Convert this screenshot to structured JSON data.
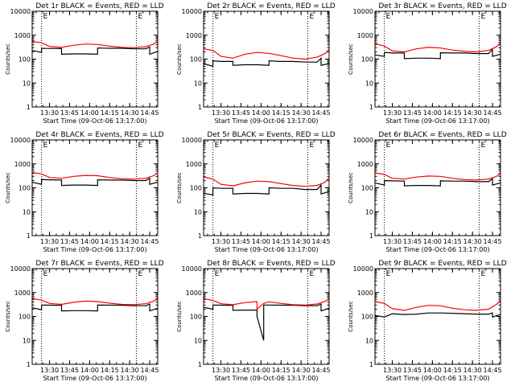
{
  "colors": {
    "events": "#000000",
    "lld": "#ff0000",
    "axes": "#000000",
    "background": "#ffffff"
  },
  "chart_data": [
    {
      "type": "line",
      "title": "Det 1r BLACK = Events, RED = LLD",
      "xlabel": "Start Time (09-Oct-06 13:17:00)",
      "ylabel": "Counts/sec",
      "yscale": "log",
      "ylim": [
        1,
        10000
      ],
      "yticks": [
        "1",
        "10",
        "100",
        "1000",
        "10000"
      ],
      "xlim": [
        "13:17",
        "14:51"
      ],
      "xticks": [
        "13:30",
        "13:45",
        "14:00",
        "14:15",
        "14:30",
        "14:45"
      ],
      "markers": [
        "13:24",
        "14:35"
      ],
      "marker_label": "E",
      "series": [
        {
          "name": "Events",
          "color": "#000000",
          "x": [
            "13:17",
            "13:24",
            "13:24",
            "13:30",
            "13:39",
            "13:39",
            "13:48",
            "13:57",
            "14:06",
            "14:06",
            "14:15",
            "14:24",
            "14:24",
            "14:33",
            "14:42",
            "14:45",
            "14:45",
            "14:51"
          ],
          "y": [
            230,
            190,
            280,
            280,
            275,
            160,
            165,
            165,
            160,
            290,
            285,
            285,
            285,
            270,
            270,
            320,
            160,
            210
          ]
        },
        {
          "name": "LLD",
          "color": "#ff0000",
          "x": [
            "13:17",
            "13:24",
            "13:30",
            "13:39",
            "13:48",
            "13:57",
            "14:06",
            "14:15",
            "14:24",
            "14:33",
            "14:42",
            "14:48",
            "14:51"
          ],
          "y": [
            550,
            480,
            340,
            310,
            380,
            430,
            410,
            350,
            310,
            300,
            330,
            430,
            560
          ]
        }
      ]
    },
    {
      "type": "line",
      "title": "Det 2r BLACK = Events, RED = LLD",
      "xlabel": "Start Time (09-Oct-06 13:17:00)",
      "ylabel": "Counts/sec",
      "yscale": "log",
      "ylim": [
        1,
        10000
      ],
      "yticks": [
        "1",
        "10",
        "100",
        "1000",
        "10000"
      ],
      "xlim": [
        "13:17",
        "14:51"
      ],
      "xticks": [
        "13:30",
        "13:45",
        "14:00",
        "14:15",
        "14:30",
        "14:45"
      ],
      "markers": [
        "13:24",
        "14:35"
      ],
      "marker_label": "E",
      "series": [
        {
          "name": "Events",
          "color": "#000000",
          "x": [
            "13:17",
            "13:24",
            "13:24",
            "13:30",
            "13:39",
            "13:39",
            "13:48",
            "13:57",
            "14:06",
            "14:06",
            "14:15",
            "14:24",
            "14:24",
            "14:33",
            "14:42",
            "14:45",
            "14:45",
            "14:51"
          ],
          "y": [
            65,
            50,
            85,
            80,
            80,
            55,
            58,
            58,
            55,
            85,
            80,
            80,
            80,
            75,
            75,
            110,
            55,
            65
          ]
        },
        {
          "name": "LLD",
          "color": "#ff0000",
          "x": [
            "13:17",
            "13:24",
            "13:30",
            "13:39",
            "13:48",
            "13:57",
            "14:06",
            "14:15",
            "14:24",
            "14:33",
            "14:42",
            "14:48",
            "14:51"
          ],
          "y": [
            270,
            230,
            130,
            110,
            160,
            190,
            175,
            140,
            110,
            100,
            120,
            170,
            260
          ]
        }
      ]
    },
    {
      "type": "line",
      "title": "Det 3r BLACK = Events, RED = LLD",
      "xlabel": "Start Time (09-Oct-06 13:17:00)",
      "ylabel": "Counts/sec",
      "yscale": "log",
      "ylim": [
        1,
        10000
      ],
      "yticks": [
        "1",
        "10",
        "100",
        "1000",
        "10000"
      ],
      "xlim": [
        "13:17",
        "14:51"
      ],
      "xticks": [
        "13:30",
        "13:45",
        "14:00",
        "14:15",
        "14:30",
        "14:45"
      ],
      "markers": [
        "13:24",
        "14:35"
      ],
      "marker_label": "E",
      "series": [
        {
          "name": "Events",
          "color": "#000000",
          "x": [
            "13:17",
            "13:24",
            "13:24",
            "13:30",
            "13:39",
            "13:39",
            "13:48",
            "13:57",
            "14:06",
            "14:06",
            "14:15",
            "14:24",
            "14:24",
            "14:33",
            "14:42",
            "14:45",
            "14:45",
            "14:51"
          ],
          "y": [
            150,
            130,
            190,
            180,
            180,
            105,
            110,
            110,
            105,
            185,
            180,
            180,
            180,
            170,
            170,
            260,
            130,
            160
          ]
        },
        {
          "name": "LLD",
          "color": "#ff0000",
          "x": [
            "13:17",
            "13:24",
            "13:30",
            "13:39",
            "13:48",
            "13:57",
            "14:06",
            "14:15",
            "14:24",
            "14:33",
            "14:42",
            "14:48",
            "14:51"
          ],
          "y": [
            450,
            350,
            220,
            200,
            270,
            310,
            290,
            240,
            210,
            200,
            230,
            330,
            480
          ]
        }
      ]
    },
    {
      "type": "line",
      "title": "Det 4r BLACK = Events, RED = LLD",
      "xlabel": "Start Time (09-Oct-06 13:17:00)",
      "ylabel": "Counts/sec",
      "yscale": "log",
      "ylim": [
        1,
        10000
      ],
      "yticks": [
        "1",
        "10",
        "100",
        "1000",
        "10000"
      ],
      "xlim": [
        "13:17",
        "14:51"
      ],
      "xticks": [
        "13:30",
        "13:45",
        "14:00",
        "14:15",
        "14:30",
        "14:45"
      ],
      "markers": [
        "13:24",
        "14:35"
      ],
      "marker_label": "E",
      "series": [
        {
          "name": "Events",
          "color": "#000000",
          "x": [
            "13:17",
            "13:24",
            "13:24",
            "13:30",
            "13:39",
            "13:39",
            "13:48",
            "13:57",
            "14:06",
            "14:06",
            "14:15",
            "14:24",
            "14:24",
            "14:33",
            "14:42",
            "14:45",
            "14:45",
            "14:51"
          ],
          "y": [
            170,
            140,
            220,
            215,
            210,
            125,
            130,
            130,
            125,
            215,
            210,
            210,
            210,
            200,
            200,
            250,
            140,
            170
          ]
        },
        {
          "name": "LLD",
          "color": "#ff0000",
          "x": [
            "13:17",
            "13:24",
            "13:30",
            "13:39",
            "13:48",
            "13:57",
            "14:06",
            "14:15",
            "14:24",
            "14:33",
            "14:42",
            "14:48",
            "14:51"
          ],
          "y": [
            440,
            380,
            270,
            250,
            300,
            330,
            320,
            270,
            240,
            230,
            250,
            320,
            430
          ]
        }
      ]
    },
    {
      "type": "line",
      "title": "Det 5r BLACK = Events, RED = LLD",
      "xlabel": "Start Time (09-Oct-06 13:17:00)",
      "ylabel": "Counts/sec",
      "yscale": "log",
      "ylim": [
        1,
        10000
      ],
      "yticks": [
        "1",
        "10",
        "100",
        "1000",
        "10000"
      ],
      "xlim": [
        "13:17",
        "14:51"
      ],
      "xticks": [
        "13:30",
        "13:45",
        "14:00",
        "14:15",
        "14:30",
        "14:45"
      ],
      "markers": [
        "13:24",
        "14:35"
      ],
      "marker_label": "E",
      "series": [
        {
          "name": "Events",
          "color": "#000000",
          "x": [
            "13:17",
            "13:24",
            "13:24",
            "13:30",
            "13:39",
            "13:39",
            "13:48",
            "13:57",
            "14:06",
            "14:06",
            "14:15",
            "14:24",
            "14:24",
            "14:33",
            "14:42",
            "14:45",
            "14:45",
            "14:51"
          ],
          "y": [
            60,
            50,
            100,
            95,
            95,
            55,
            58,
            58,
            55,
            100,
            95,
            95,
            95,
            85,
            85,
            130,
            55,
            70
          ]
        },
        {
          "name": "LLD",
          "color": "#ff0000",
          "x": [
            "13:17",
            "13:24",
            "13:30",
            "13:39",
            "13:48",
            "13:57",
            "14:06",
            "14:15",
            "14:24",
            "14:33",
            "14:42",
            "14:48",
            "14:51"
          ],
          "y": [
            280,
            230,
            140,
            120,
            160,
            190,
            180,
            150,
            125,
            115,
            125,
            170,
            270
          ]
        }
      ]
    },
    {
      "type": "line",
      "title": "Det 6r BLACK = Events, RED = LLD",
      "xlabel": "Start Time (09-Oct-06 13:17:00)",
      "ylabel": "Counts/sec",
      "yscale": "log",
      "ylim": [
        1,
        10000
      ],
      "yticks": [
        "1",
        "10",
        "100",
        "1000",
        "10000"
      ],
      "xlim": [
        "13:17",
        "14:51"
      ],
      "xticks": [
        "13:30",
        "13:45",
        "14:00",
        "14:15",
        "14:30",
        "14:45"
      ],
      "markers": [
        "13:24",
        "14:35"
      ],
      "marker_label": "E",
      "series": [
        {
          "name": "Events",
          "color": "#000000",
          "x": [
            "13:17",
            "13:24",
            "13:24",
            "13:30",
            "13:39",
            "13:39",
            "13:48",
            "13:57",
            "14:06",
            "14:06",
            "14:15",
            "14:24",
            "14:24",
            "14:33",
            "14:42",
            "14:45",
            "14:45",
            "14:51"
          ],
          "y": [
            160,
            130,
            200,
            195,
            190,
            120,
            125,
            125,
            120,
            195,
            190,
            190,
            190,
            180,
            180,
            240,
            130,
            160
          ]
        },
        {
          "name": "LLD",
          "color": "#ff0000",
          "x": [
            "13:17",
            "13:24",
            "13:30",
            "13:39",
            "13:48",
            "13:57",
            "14:06",
            "14:15",
            "14:24",
            "14:33",
            "14:42",
            "14:48",
            "14:51"
          ],
          "y": [
            420,
            360,
            250,
            230,
            280,
            310,
            300,
            250,
            220,
            210,
            230,
            300,
            400
          ]
        }
      ]
    },
    {
      "type": "line",
      "title": "Det 7r BLACK = Events, RED = LLD",
      "xlabel": "Start Time (09-Oct-06 13:17:00)",
      "ylabel": "Counts/sec",
      "yscale": "log",
      "ylim": [
        1,
        10000
      ],
      "yticks": [
        "1",
        "10",
        "100",
        "1000",
        "10000"
      ],
      "xlim": [
        "13:17",
        "14:51"
      ],
      "xticks": [
        "13:30",
        "13:45",
        "14:00",
        "14:15",
        "14:30",
        "14:45"
      ],
      "markers": [
        "13:24",
        "14:35"
      ],
      "marker_label": "E",
      "series": [
        {
          "name": "Events",
          "color": "#000000",
          "x": [
            "13:17",
            "13:24",
            "13:24",
            "13:30",
            "13:39",
            "13:39",
            "13:48",
            "13:57",
            "14:06",
            "14:06",
            "14:15",
            "14:24",
            "14:24",
            "14:33",
            "14:42",
            "14:45",
            "14:45",
            "14:51"
          ],
          "y": [
            230,
            190,
            300,
            295,
            290,
            170,
            175,
            175,
            170,
            300,
            295,
            295,
            295,
            280,
            280,
            330,
            170,
            220
          ]
        },
        {
          "name": "LLD",
          "color": "#ff0000",
          "x": [
            "13:17",
            "13:24",
            "13:30",
            "13:39",
            "13:48",
            "13:57",
            "14:06",
            "14:15",
            "14:24",
            "14:33",
            "14:42",
            "14:48",
            "14:51"
          ],
          "y": [
            560,
            480,
            350,
            320,
            390,
            440,
            420,
            360,
            320,
            310,
            340,
            440,
            580
          ]
        }
      ]
    },
    {
      "type": "line",
      "title": "Det 8r BLACK = Events, RED = LLD",
      "xlabel": "Start Time (09-Oct-06 13:17:00)",
      "ylabel": "Counts/sec",
      "yscale": "log",
      "ylim": [
        1,
        10000
      ],
      "yticks": [
        "1",
        "10",
        "100",
        "1000",
        "10000"
      ],
      "xlim": [
        "13:17",
        "14:51"
      ],
      "xticks": [
        "13:30",
        "13:45",
        "14:00",
        "14:15",
        "14:30",
        "14:45"
      ],
      "markers": [
        "13:24",
        "14:35"
      ],
      "marker_label": "E",
      "series": [
        {
          "name": "Events",
          "color": "#000000",
          "x": [
            "13:17",
            "13:24",
            "13:24",
            "13:30",
            "13:39",
            "13:39",
            "13:48",
            "13:57",
            "13:57",
            "14:02",
            "14:02",
            "14:06",
            "14:06",
            "14:15",
            "14:24",
            "14:24",
            "14:33",
            "14:42",
            "14:45",
            "14:45",
            "14:51"
          ],
          "y": [
            240,
            200,
            300,
            295,
            290,
            180,
            185,
            185,
            100,
            10,
            300,
            300,
            300,
            295,
            295,
            295,
            280,
            280,
            330,
            170,
            220
          ]
        },
        {
          "name": "LLD",
          "color": "#ff0000",
          "x": [
            "13:17",
            "13:24",
            "13:30",
            "13:39",
            "13:48",
            "13:57",
            "13:57",
            "14:02",
            "14:06",
            "14:15",
            "14:24",
            "14:33",
            "14:42",
            "14:48",
            "14:51"
          ],
          "y": [
            550,
            470,
            340,
            310,
            380,
            420,
            200,
            350,
            410,
            350,
            310,
            300,
            330,
            430,
            560
          ]
        }
      ]
    },
    {
      "type": "line",
      "title": "Det 9r BLACK = Events, RED = LLD",
      "xlabel": "Start Time (09-Oct-06 13:17:00)",
      "ylabel": "Counts/sec",
      "yscale": "log",
      "ylim": [
        1,
        10000
      ],
      "yticks": [
        "1",
        "10",
        "100",
        "1000",
        "10000"
      ],
      "xlim": [
        "13:17",
        "14:51"
      ],
      "xticks": [
        "13:30",
        "13:45",
        "14:00",
        "14:15",
        "14:30",
        "14:45"
      ],
      "markers": [
        "13:24",
        "14:35"
      ],
      "marker_label": "E",
      "series": [
        {
          "name": "Events",
          "color": "#000000",
          "x": [
            "13:17",
            "13:24",
            "13:30",
            "13:39",
            "13:48",
            "13:57",
            "14:06",
            "14:15",
            "14:24",
            "14:33",
            "14:42",
            "14:45",
            "14:45",
            "14:51"
          ],
          "y": [
            110,
            95,
            130,
            120,
            125,
            140,
            140,
            135,
            130,
            125,
            125,
            140,
            95,
            120
          ]
        },
        {
          "name": "LLD",
          "color": "#ff0000",
          "x": [
            "13:17",
            "13:24",
            "13:30",
            "13:39",
            "13:48",
            "13:57",
            "14:06",
            "14:15",
            "14:24",
            "14:33",
            "14:42",
            "14:48",
            "14:51"
          ],
          "y": [
            420,
            350,
            210,
            180,
            240,
            290,
            280,
            220,
            190,
            180,
            200,
            320,
            480
          ]
        }
      ]
    }
  ]
}
